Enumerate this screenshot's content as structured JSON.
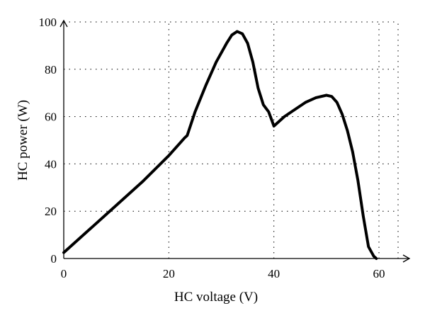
{
  "chart_data": {
    "type": "line",
    "xlabel": "HC voltage (V)",
    "ylabel": "HC power (W)",
    "xlim": [
      0,
      62
    ],
    "ylim": [
      0,
      100
    ],
    "x_ticks": [
      0,
      20,
      40,
      60
    ],
    "y_ticks": [
      0,
      20,
      40,
      60,
      80,
      100
    ],
    "x_tick_labels": [
      "0",
      "20",
      "40",
      "60"
    ],
    "y_tick_labels": [
      "0",
      "20",
      "40",
      "60",
      "80",
      "100"
    ],
    "grid": true,
    "series": [
      {
        "x": [
          0,
          5,
          10,
          15,
          20,
          23,
          23.5,
          25,
          27,
          29,
          31,
          32,
          33,
          34,
          35,
          36,
          37,
          38,
          39,
          40,
          42,
          44,
          46,
          48,
          50,
          51,
          52,
          53,
          54,
          55,
          56,
          57,
          58,
          59,
          59.5
        ],
        "y": [
          2.5,
          12.5,
          22.5,
          32.5,
          43.5,
          51,
          52,
          62,
          73,
          83,
          91,
          94.5,
          96,
          95,
          91,
          83,
          72,
          65,
          62,
          56,
          60,
          63,
          66,
          68,
          69,
          68.5,
          66,
          61,
          54,
          45,
          33,
          18,
          5,
          1,
          0
        ]
      }
    ]
  }
}
